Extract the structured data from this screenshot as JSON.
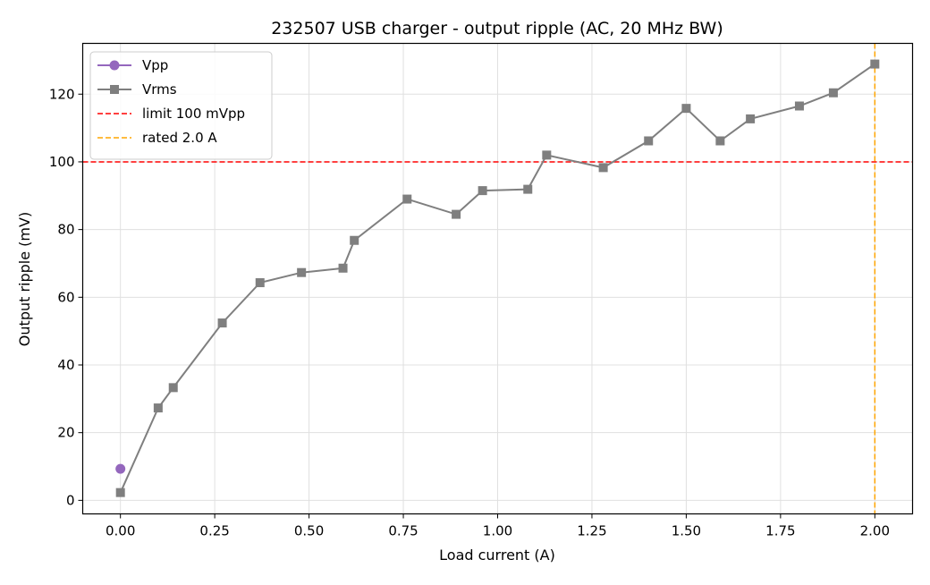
{
  "chart_data": {
    "type": "line",
    "title": "232507 USB charger - output ripple (AC, 20 MHz BW)",
    "xlabel": "Load current (A)",
    "ylabel": "Output ripple (mV)",
    "xlim": [
      -0.1,
      2.1
    ],
    "ylim": [
      -4,
      135
    ],
    "xticks": [
      0.0,
      0.25,
      0.5,
      0.75,
      1.0,
      1.25,
      1.5,
      1.75,
      2.0
    ],
    "xtick_labels": [
      "0.00",
      "0.25",
      "0.50",
      "0.75",
      "1.00",
      "1.25",
      "1.50",
      "1.75",
      "2.00"
    ],
    "yticks": [
      0,
      20,
      40,
      60,
      80,
      100,
      120
    ],
    "ytick_labels": [
      "0",
      "20",
      "40",
      "60",
      "80",
      "100",
      "120"
    ],
    "grid": true,
    "legend_position": "top-left",
    "series": [
      {
        "name": "Vpp",
        "color": "#9467bd",
        "marker": "circle",
        "x": [
          0.0
        ],
        "y": [
          9.3
        ]
      },
      {
        "name": "Vrms",
        "color": "#7f7f7f",
        "marker": "square",
        "x": [
          0.0,
          0.1,
          0.14,
          0.27,
          0.37,
          0.48,
          0.59,
          0.62,
          0.76,
          0.89,
          0.96,
          1.08,
          1.13,
          1.28,
          1.4,
          1.5,
          1.59,
          1.67,
          1.8,
          1.89,
          2.0
        ],
        "y": [
          2.3,
          27.3,
          33.3,
          52.4,
          64.3,
          67.3,
          68.6,
          76.8,
          89.0,
          84.5,
          91.5,
          91.9,
          102.0,
          98.3,
          106.2,
          115.8,
          106.2,
          112.7,
          116.5,
          120.4,
          128.9
        ]
      }
    ],
    "reference_lines": [
      {
        "name": "limit 100 mVpp",
        "orientation": "horizontal",
        "value": 100,
        "color": "#ff0000",
        "style": "dashed"
      },
      {
        "name": "rated 2.0 A",
        "orientation": "vertical",
        "value": 2.0,
        "color": "#ffa500",
        "style": "dashed"
      }
    ]
  }
}
